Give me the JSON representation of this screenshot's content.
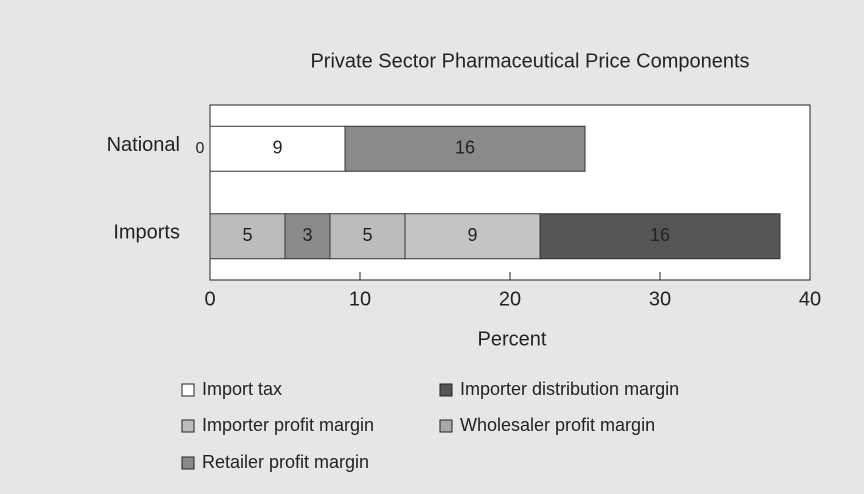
{
  "chart_data": {
    "type": "stacked-bar-horizontal",
    "title": "Private Sector Pharmaceutical Price Components",
    "x_label": "Percent",
    "xlim": [
      0,
      40
    ],
    "xticks": [
      0,
      10,
      20,
      30,
      40
    ],
    "bars": [
      {
        "category": "National",
        "segments": [
          {
            "value": 0,
            "color": "#ffffff"
          },
          {
            "value": 9,
            "color": "#ffffff"
          },
          {
            "value": 16,
            "color": "#8a8a8a"
          }
        ]
      },
      {
        "category": "Imports",
        "segments": [
          {
            "value": 5,
            "color": "#bcbcbc"
          },
          {
            "value": 3,
            "color": "#8a8a8a"
          },
          {
            "value": 5,
            "color": "#bcbcbc"
          },
          {
            "value": 9,
            "color": "#c4c4c4"
          },
          {
            "value": 16,
            "color": "#555555"
          }
        ]
      }
    ],
    "legend": [
      {
        "name": "Import tax",
        "color": "#ffffff"
      },
      {
        "name": "Importer distribution margin",
        "color": "#555555"
      },
      {
        "name": "Importer profit margin",
        "color": "#bcbcbc"
      },
      {
        "name": "Wholesaler profit margin",
        "color": "#a8a8a8"
      },
      {
        "name": "Retailer profit margin",
        "color": "#8a8a8a"
      }
    ]
  }
}
